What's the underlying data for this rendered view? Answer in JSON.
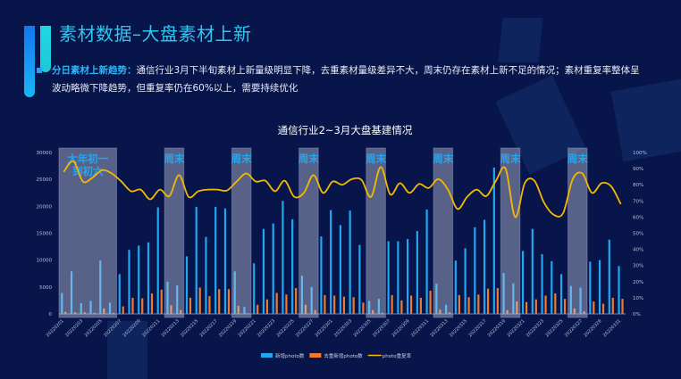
{
  "header": {
    "title": "素材数据–大盘素材上新"
  },
  "summary": {
    "label": "分日素材上新趋势：",
    "text": "通信行业3月下半旬素材上新量级明显下降，去重素材量级差异不大，周末仍存在素材上新不足的情况；素材重复率整体呈波动略微下降趋势，但重复率仍在60%以上，需要持续优化"
  },
  "colors": {
    "background": "#07154a",
    "accent": "#2fc6f0",
    "new_photo": "#1fa8f0",
    "dedup_photo": "#f07a2c",
    "repeat_rate": "#f5b800",
    "band": "#c8cce0"
  },
  "chart_data": {
    "type": "bar+line",
    "title": "通信行业2~3月大盘基建情况",
    "x_tick_labels": [
      "20220201",
      "20220203",
      "20220205",
      "20220207",
      "20220209",
      "20220211",
      "20220213",
      "20220215",
      "20220217",
      "20220219",
      "20220221",
      "20220223",
      "20220225",
      "20220227",
      "20220301",
      "20220303",
      "20220305",
      "20220307",
      "20220309",
      "20220311",
      "20220313",
      "20220315",
      "20220317",
      "20220319",
      "20220321",
      "20220323",
      "20220325",
      "20220327",
      "20220329",
      "20220331"
    ],
    "y_left": {
      "ticks": [
        "0",
        "5000",
        "10000",
        "15000",
        "20000",
        "25000",
        "30000"
      ],
      "range": [
        0,
        30000
      ]
    },
    "y_right": {
      "ticks": [
        "0%",
        "10%",
        "20%",
        "30%",
        "40%",
        "50%",
        "60%",
        "70%",
        "80%",
        "90%",
        "100%"
      ],
      "range": [
        0,
        100
      ]
    },
    "legend_position": "bottom",
    "x": [
      "20220201",
      "20220202",
      "20220203",
      "20220204",
      "20220205",
      "20220206",
      "20220207",
      "20220208",
      "20220209",
      "20220210",
      "20220211",
      "20220212",
      "20220213",
      "20220214",
      "20220215",
      "20220216",
      "20220217",
      "20220218",
      "20220219",
      "20220220",
      "20220221",
      "20220222",
      "20220223",
      "20220224",
      "20220225",
      "20220226",
      "20220227",
      "20220228",
      "20220301",
      "20220302",
      "20220303",
      "20220304",
      "20220305",
      "20220306",
      "20220307",
      "20220308",
      "20220309",
      "20220310",
      "20220311",
      "20220312",
      "20220313",
      "20220314",
      "20220315",
      "20220316",
      "20220317",
      "20220318",
      "20220319",
      "20220320",
      "20220321",
      "20220322",
      "20220323",
      "20220324",
      "20220325",
      "20220326",
      "20220327",
      "20220328",
      "20220329",
      "20220330",
      "20220331"
    ],
    "series": [
      {
        "name": "新增photo数",
        "type": "bar",
        "axis": "left",
        "values": [
          3900,
          7900,
          2000,
          2400,
          9900,
          2100,
          7400,
          11900,
          12700,
          13300,
          19800,
          6000,
          5300,
          10700,
          19900,
          14300,
          19900,
          19600,
          7900,
          1300,
          9400,
          15800,
          16800,
          21000,
          17600,
          7100,
          5000,
          14400,
          19300,
          16500,
          19200,
          12800,
          2400,
          2800,
          13500,
          13500,
          13900,
          15400,
          19400,
          5600,
          1700,
          9900,
          12200,
          16100,
          17500,
          27200,
          7600,
          5700,
          11700,
          15800,
          11100,
          9800,
          7400,
          5200,
          4900,
          9700,
          10000,
          13800,
          8900
        ]
      },
      {
        "name": "去重新增photo数",
        "type": "bar",
        "axis": "left",
        "values": [
          400,
          300,
          300,
          200,
          1000,
          200,
          1400,
          3000,
          2900,
          3800,
          4500,
          1600,
          700,
          3000,
          4900,
          3300,
          4600,
          4600,
          1500,
          100,
          1700,
          2700,
          3900,
          3600,
          4800,
          1700,
          700,
          3500,
          3400,
          3200,
          3100,
          2100,
          700,
          200,
          3500,
          2500,
          3400,
          3000,
          4300,
          800,
          300,
          3500,
          3100,
          3600,
          4700,
          4800,
          700,
          2300,
          2200,
          2700,
          3400,
          3800,
          2800,
          1000,
          500,
          2300,
          1900,
          3000,
          2800
        ]
      },
      {
        "name": "photo重复率",
        "type": "line",
        "axis": "right",
        "values": [
          88,
          94.5,
          82,
          84.5,
          89,
          87,
          82,
          76,
          77,
          71,
          77,
          73,
          86,
          72.5,
          76,
          77,
          77,
          76.5,
          82,
          87,
          82,
          82.5,
          76,
          82.5,
          72.5,
          75,
          86,
          75,
          82,
          80,
          83.5,
          83,
          72.5,
          91,
          74,
          81,
          75,
          80.5,
          78,
          83.5,
          77,
          65,
          72.5,
          77,
          73,
          82.5,
          90,
          60,
          81,
          82.5,
          69,
          61.5,
          62.5,
          83.5,
          87,
          75,
          81,
          79,
          68
        ]
      }
    ],
    "bands": [
      {
        "label": "大年初一到初六",
        "from": "20220201",
        "to": "20220206"
      },
      {
        "label": "周末",
        "from": "20220212",
        "to": "20220213"
      },
      {
        "label": "周末",
        "from": "20220219",
        "to": "20220220"
      },
      {
        "label": "周末",
        "from": "20220226",
        "to": "20220227"
      },
      {
        "label": "周末",
        "from": "20220305",
        "to": "20220306"
      },
      {
        "label": "周末",
        "from": "20220312",
        "to": "20220313"
      },
      {
        "label": "周末",
        "from": "20220319",
        "to": "20220320"
      },
      {
        "label": "周末",
        "from": "20220326",
        "to": "20220327"
      }
    ]
  }
}
